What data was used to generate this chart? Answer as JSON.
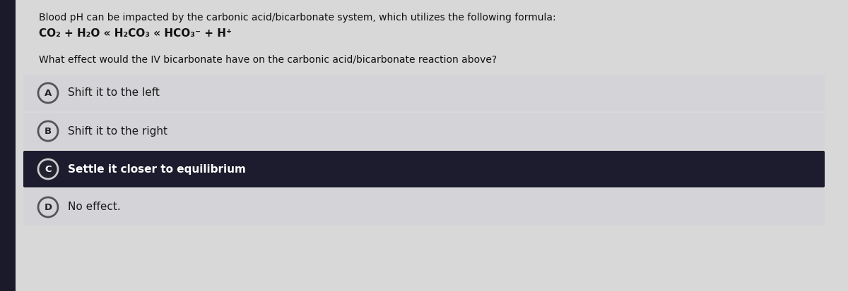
{
  "bg_color": "#d8d8d8",
  "content_bg": "#e8e8e8",
  "title_text": "Blood pH can be impacted by the carbonic acid/bicarbonate system, which utilizes the following formula:",
  "formula_text": "CO₂ + H₂O « H₂CO₃ « HCO₃⁻ + H⁺",
  "question_text": "What effect would the IV bicarbonate have on the carbonic acid/bicarbonate reaction above?",
  "options": [
    {
      "label": "A",
      "text": "Shift it to the left",
      "selected": false
    },
    {
      "label": "B",
      "text": "Shift it to the right",
      "selected": false
    },
    {
      "label": "C",
      "text": "Settle it closer to equilibrium",
      "selected": true
    },
    {
      "label": "D",
      "text": "No effect.",
      "selected": false
    }
  ],
  "option_bg_normal": "#d4d4d8",
  "option_bg_selected": "#1c1c2e",
  "option_text_normal": "#1a1a1a",
  "option_text_selected": "#ffffff",
  "title_fontsize": 10.0,
  "formula_fontsize": 11.0,
  "question_fontsize": 10.0,
  "option_fontsize": 11.0,
  "left_bar_color": "#1a1a2a",
  "left_bar_width": 22
}
